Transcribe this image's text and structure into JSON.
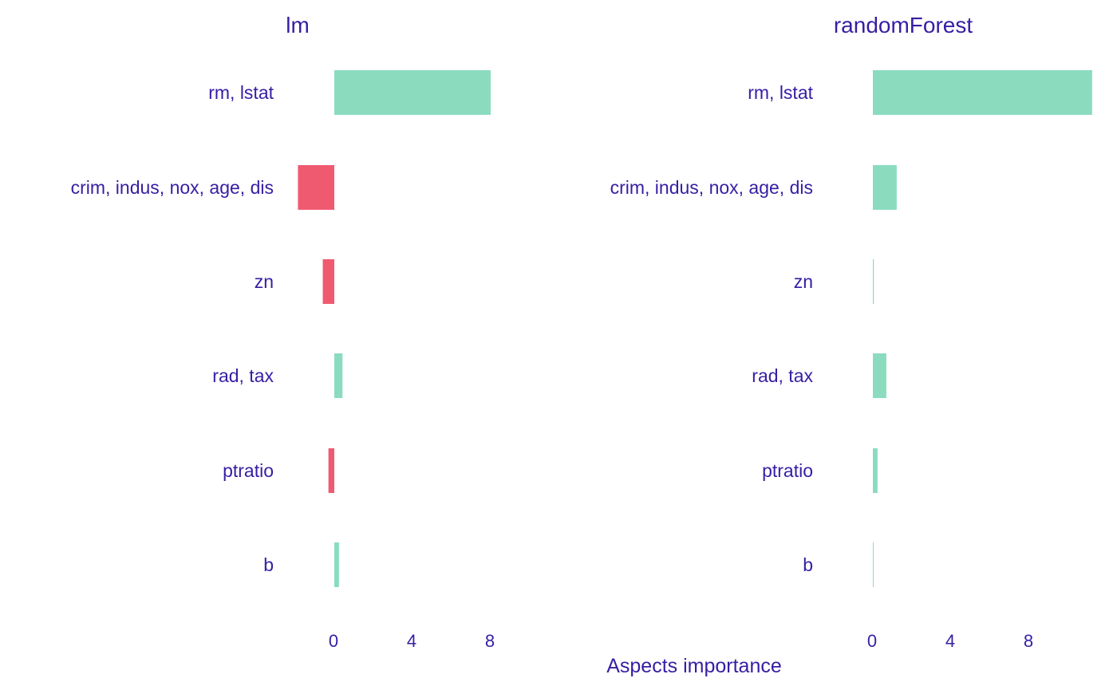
{
  "chart_data": [
    {
      "type": "bar",
      "orientation": "horizontal",
      "title": "lm",
      "categories": [
        "rm, lstat",
        "crim, indus, nox, age, dis",
        "zn",
        "rad, tax",
        "ptratio",
        "b"
      ],
      "values": [
        8.0,
        -1.86,
        -0.59,
        0.42,
        -0.3,
        0.24
      ],
      "xticks": [
        0,
        4,
        8
      ],
      "grid": false
    },
    {
      "type": "bar",
      "orientation": "horizontal",
      "title": "randomForest",
      "categories": [
        "rm, lstat",
        "crim, indus, nox, age, dis",
        "zn",
        "rad, tax",
        "ptratio",
        "b"
      ],
      "values": [
        11.22,
        1.22,
        0.05,
        0.69,
        0.24,
        0.02
      ],
      "xticks": [
        0,
        4,
        8
      ],
      "grid": false
    }
  ],
  "xlabel": "Aspects importance",
  "colors": {
    "positive": "#8bdcbe",
    "negative": "#f05a71",
    "text": "#371ea3"
  }
}
